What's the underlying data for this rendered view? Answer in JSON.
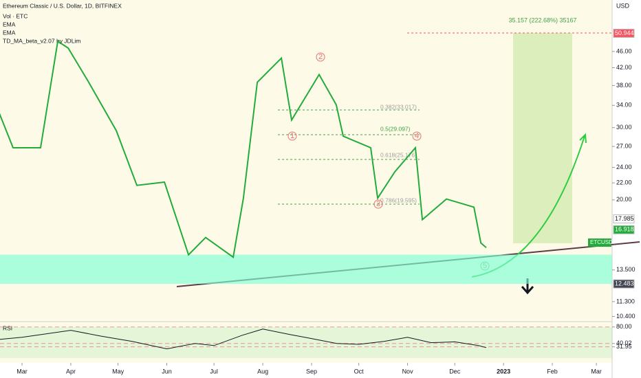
{
  "chart_data": [
    {
      "type": "line",
      "title": "Ethereum Classic / U.S. Dollar, 1D, BITFINEX",
      "indicators": [
        "Vol · ETC",
        "EMA",
        "EMA",
        "TD_MA_beta_v2.07 by JDLim"
      ],
      "y_label": "USD",
      "x": [
        -14.4,
        -5.7,
        11.8,
        22.7,
        29.3,
        42.4,
        59.9,
        73,
        90.5,
        105.8,
        116.7,
        134.2,
        140.7,
        149.5,
        164.8,
        171.3,
        188.8,
        199.7,
        204.1,
        221.6,
        226,
        236.9,
        250,
        254.4,
        269.7,
        287.2,
        291.6,
        295
      ],
      "values": [
        32.5,
        26.8,
        26.8,
        48.7,
        46.9,
        38.7,
        29.5,
        21.7,
        22.1,
        14.7,
        16.2,
        14.5,
        20.2,
        38.7,
        44.3,
        31.3,
        40.4,
        34.1,
        28.6,
        26.8,
        20.2,
        23.4,
        26.8,
        17.9,
        20.1,
        19.2,
        15.7,
        15.3
      ],
      "color": "#22ab3a",
      "log_scale": true,
      "xlim": [
        -14,
        375
      ],
      "xticks": [
        {
          "value": 0,
          "label": "Mar"
        },
        {
          "value": 31,
          "label": "Apr"
        },
        {
          "value": 61,
          "label": "May"
        },
        {
          "value": 92,
          "label": "Jun"
        },
        {
          "value": 122,
          "label": "Jul"
        },
        {
          "value": 153,
          "label": "Aug"
        },
        {
          "value": 184,
          "label": "Sep"
        },
        {
          "value": 214,
          "label": "Oct"
        },
        {
          "value": 245,
          "label": "Nov"
        },
        {
          "value": 275,
          "label": "Dec"
        },
        {
          "value": 306,
          "label": "2023"
        },
        {
          "value": 337,
          "label": "Feb"
        },
        {
          "value": 365,
          "label": "Mar"
        }
      ],
      "ylim": [
        10.1,
        61.4
      ],
      "yticks": [
        {
          "value": 46,
          "label": "46.00"
        },
        {
          "value": 42,
          "label": "42.00"
        },
        {
          "value": 38,
          "label": "38.00"
        },
        {
          "value": 34,
          "label": "34.00"
        },
        {
          "value": 30,
          "label": "30.00"
        },
        {
          "value": 27,
          "label": "27.00"
        },
        {
          "value": 24,
          "label": "24.00"
        },
        {
          "value": 22,
          "label": "22.00"
        },
        {
          "value": 20,
          "label": "20.00"
        },
        {
          "value": 13.5,
          "label": "13.500"
        },
        {
          "value": 11.3,
          "label": "11.300"
        },
        {
          "value": 10.4,
          "label": "10.400"
        }
      ],
      "price_tags": [
        {
          "value": 50.944,
          "color": "#f7525f"
        },
        {
          "value": 17.985,
          "color": "#ffffff"
        },
        {
          "value": 16.918,
          "color": "#22ab3a"
        },
        {
          "value": 12.483,
          "color": "#434651"
        }
      ],
      "support_zone": [
        12.483,
        14.71
      ],
      "annotations": [
        "35.157 (222.68%) 35167",
        "0.382(33.017)",
        "0.5(29.097)",
        "0.618(25.176)",
        "0.786(19.595)",
        "1",
        "2",
        "3",
        "4",
        "5",
        "ETCUSD"
      ]
    },
    {
      "type": "line",
      "label": "RSI",
      "x": [
        -14.4,
        0,
        31,
        50,
        70,
        92,
        110,
        122,
        140,
        153,
        170,
        184,
        200,
        214,
        230,
        245,
        260,
        275,
        290,
        295
      ],
      "values": [
        50,
        55,
        72,
        58,
        45,
        27,
        40,
        35,
        60,
        75,
        62,
        52,
        40,
        38,
        45,
        55,
        42,
        44,
        35,
        30
      ],
      "color": "#131722",
      "xlim": [
        -14,
        375
      ],
      "ylim": [
        -7,
        93
      ],
      "yticks": [
        {
          "value": 80,
          "label": "80.00"
        },
        {
          "value": 40.02,
          "label": "40.02"
        },
        {
          "value": 31.95,
          "label": "31.95"
        }
      ]
    }
  ]
}
